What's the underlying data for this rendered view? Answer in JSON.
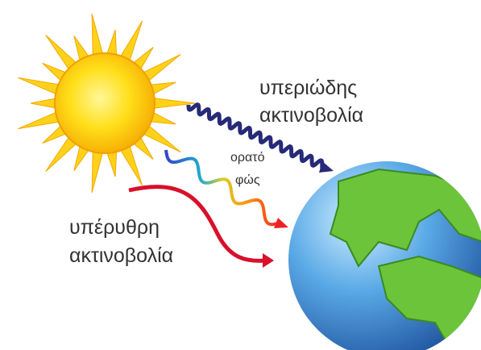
{
  "labels": {
    "ultraviolet": [
      "υπεριώδης",
      "ακτινοβολία"
    ],
    "visible": [
      "ορατό",
      "φώς"
    ],
    "infrared": [
      "υπέρυθρη",
      "ακτινοβολία"
    ]
  }
}
